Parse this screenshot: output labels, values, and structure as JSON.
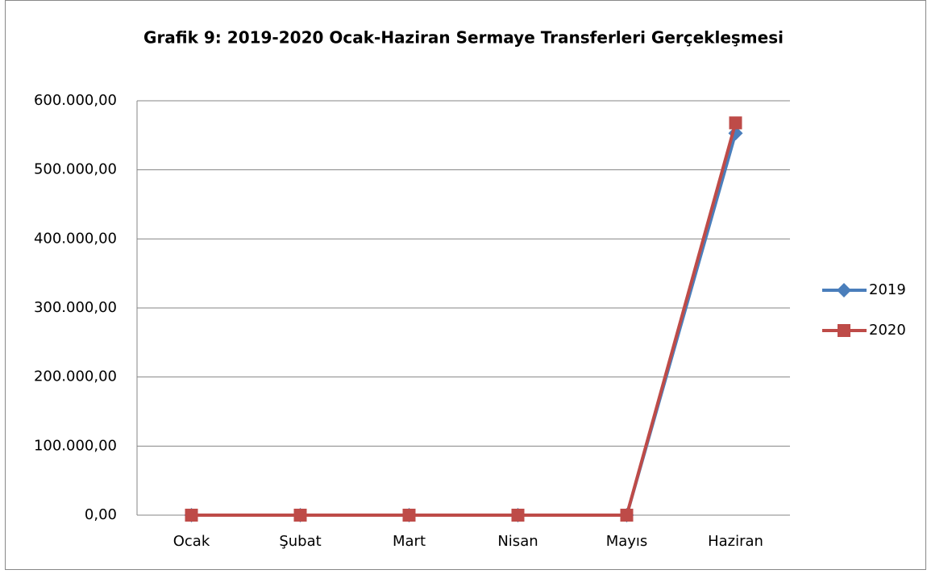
{
  "chart_data": {
    "type": "line",
    "title": "Grafik 9: 2019-2020 Ocak-Haziran Sermaye Transferleri Gerçekleşmesi",
    "categories": [
      "Ocak",
      "Şubat",
      "Mart",
      "Nisan",
      "Mayıs",
      "Haziran"
    ],
    "series": [
      {
        "name": "2019",
        "color": "#4a7ebb",
        "marker": "diamond",
        "values": [
          0,
          0,
          0,
          0,
          0,
          553000
        ]
      },
      {
        "name": "2020",
        "color": "#be4b48",
        "marker": "square",
        "values": [
          0,
          0,
          0,
          0,
          0,
          568000
        ]
      }
    ],
    "ylim": [
      0,
      600000
    ],
    "yticks": [
      {
        "value": 0,
        "label": "0,00"
      },
      {
        "value": 100000,
        "label": "100.000,00"
      },
      {
        "value": 200000,
        "label": "200.000,00"
      },
      {
        "value": 300000,
        "label": "300.000,00"
      },
      {
        "value": 400000,
        "label": "400.000,00"
      },
      {
        "value": 500000,
        "label": "500.000,00"
      },
      {
        "value": 600000,
        "label": "600.000,00"
      }
    ],
    "grid": true,
    "legend": "right"
  }
}
